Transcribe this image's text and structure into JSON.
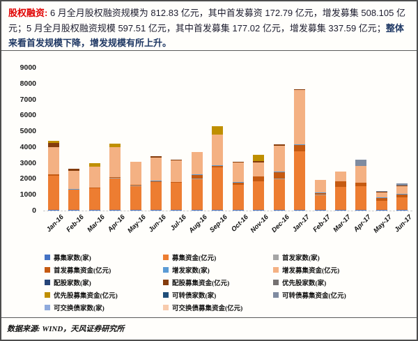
{
  "header": {
    "label": "股权融资:",
    "body": " 6 月全月股权融资规模为 812.83 亿元，其中首发募资 172.79 亿元，增发募集 508.105 亿元；5 月全月股权融资规模 597.51 亿元，其中首发募集 177.02 亿元，增发募集 337.59 亿元；",
    "emphasis": "整体来看首发规模下降，增发规模有所上升。"
  },
  "colors": {
    "headline_red": "#e00000",
    "emphasis_blue": "#1f3864",
    "body_text": "#1c1c2e",
    "border": "#4d4d4d"
  },
  "footer": {
    "source": "数据来源: WIND，天风证券研究所"
  },
  "chart_data": {
    "type": "bar",
    "stacked": true,
    "unit": "亿元 / 家",
    "ylim": [
      0,
      9000
    ],
    "yticks": [
      0,
      1000,
      2000,
      3000,
      4000,
      5000,
      6000,
      7000,
      8000,
      9000
    ],
    "grid": false,
    "legend_position": "bottom",
    "categories": [
      "Jan-16",
      "Feb-16",
      "Mar-16",
      "Apr-16",
      "May-16",
      "Jun-16",
      "Jul-16",
      "Aug-16",
      "Sep-16",
      "Oct-16",
      "Nov-16",
      "Dec-16",
      "Jan-17",
      "Feb-17",
      "Mar-17",
      "Apr-17",
      "May-17",
      "Jun-17"
    ],
    "series": [
      {
        "name": "募集家数(家)",
        "color": "#4472c4",
        "values": [
          45,
          40,
          40,
          40,
          35,
          35,
          35,
          35,
          35,
          35,
          35,
          35,
          40,
          30,
          30,
          30,
          25,
          30
        ]
      },
      {
        "name": "募集资金(亿元)",
        "color": "#ed7d31",
        "values": [
          2150,
          1260,
          1350,
          2000,
          1520,
          1760,
          1720,
          1950,
          2680,
          1600,
          1800,
          1950,
          3700,
          950,
          1450,
          1500,
          597.51,
          812.83
        ]
      },
      {
        "name": "首发家数(家)",
        "color": "#a5a5a5",
        "values": [
          15,
          10,
          10,
          10,
          10,
          10,
          10,
          15,
          20,
          10,
          15,
          20,
          15,
          10,
          10,
          10,
          8,
          10
        ]
      },
      {
        "name": "首发募集资金(亿元)",
        "color": "#c55a11",
        "values": [
          55,
          30,
          40,
          40,
          60,
          50,
          40,
          250,
          80,
          130,
          300,
          420,
          380,
          120,
          350,
          220,
          177.02,
          172.79
        ]
      },
      {
        "name": "增发家数(家)",
        "color": "#5b9bd5",
        "values": [
          25,
          15,
          15,
          15,
          15,
          15,
          15,
          20,
          20,
          15,
          15,
          20,
          20,
          15,
          15,
          15,
          10,
          10
        ]
      },
      {
        "name": "增发募集资金(亿元)",
        "color": "#f4b183",
        "values": [
          1700,
          1150,
          1300,
          1900,
          1450,
          1480,
          1350,
          1430,
          1950,
          1250,
          880,
          1650,
          3450,
          830,
          590,
          1020,
          337.59,
          508.105
        ]
      },
      {
        "name": "配股家数(家)",
        "color": "#264478",
        "values": [
          5,
          0,
          0,
          0,
          0,
          0,
          0,
          0,
          0,
          0,
          0,
          5,
          5,
          0,
          0,
          0,
          0,
          0
        ]
      },
      {
        "name": "配股募集资金(亿元)",
        "color": "#843c0c",
        "values": [
          280,
          120,
          0,
          0,
          0,
          60,
          40,
          0,
          0,
          40,
          60,
          60,
          40,
          0,
          0,
          0,
          30,
          60
        ]
      },
      {
        "name": "优先股家数(家)",
        "color": "#757171",
        "values": [
          0,
          0,
          0,
          0,
          0,
          0,
          0,
          0,
          0,
          0,
          0,
          0,
          0,
          0,
          0,
          0,
          0,
          0
        ]
      },
      {
        "name": "优先股募集资金(亿元)",
        "color": "#bf8f00",
        "values": [
          120,
          0,
          250,
          200,
          0,
          0,
          0,
          0,
          550,
          0,
          430,
          0,
          0,
          0,
          0,
          0,
          0,
          0
        ]
      },
      {
        "name": "可转债家数(家)",
        "color": "#1f4e79",
        "values": [
          0,
          0,
          0,
          0,
          0,
          0,
          0,
          0,
          0,
          0,
          0,
          0,
          0,
          0,
          0,
          0,
          0,
          0
        ]
      },
      {
        "name": "可转债募集资金(亿元)",
        "color": "#7f8ba0",
        "values": [
          0,
          0,
          0,
          0,
          0,
          0,
          0,
          0,
          0,
          0,
          0,
          0,
          0,
          0,
          0,
          430,
          30,
          100
        ]
      },
      {
        "name": "可交换债家数(家)",
        "color": "#8faadc",
        "values": [
          0,
          0,
          0,
          0,
          0,
          0,
          0,
          0,
          0,
          0,
          0,
          0,
          0,
          0,
          0,
          0,
          0,
          0
        ]
      },
      {
        "name": "可交换债募集资金(亿元)",
        "color": "#f8cbad",
        "values": [
          0,
          0,
          0,
          0,
          0,
          0,
          0,
          0,
          0,
          0,
          0,
          0,
          0,
          0,
          0,
          0,
          0,
          0
        ]
      }
    ]
  }
}
